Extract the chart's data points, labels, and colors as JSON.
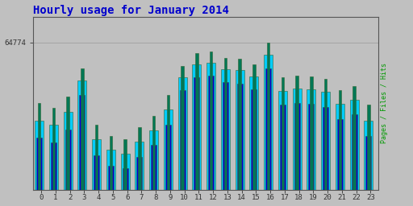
{
  "title": "Hourly usage for January 2014",
  "title_color": "#0000cc",
  "title_fontsize": 10,
  "ylabel": "Pages / Files / Hits",
  "ylabel_color": "#009900",
  "ytick_label": "64774",
  "background_color": "#c0c0c0",
  "plot_bg_color": "#c0c0c0",
  "bar_border_color": "#336633",
  "hours": [
    0,
    1,
    2,
    3,
    4,
    5,
    6,
    7,
    8,
    9,
    10,
    11,
    12,
    13,
    14,
    15,
    16,
    17,
    18,
    19,
    20,
    21,
    22,
    23
  ],
  "pages": [
    0.92,
    0.915,
    0.928,
    0.96,
    0.895,
    0.882,
    0.878,
    0.892,
    0.905,
    0.93,
    0.963,
    0.978,
    0.98,
    0.972,
    0.971,
    0.965,
    0.99,
    0.95,
    0.952,
    0.951,
    0.948,
    0.935,
    0.94,
    0.918
  ],
  "files": [
    0.88,
    0.875,
    0.89,
    0.93,
    0.86,
    0.848,
    0.845,
    0.858,
    0.872,
    0.895,
    0.935,
    0.95,
    0.952,
    0.944,
    0.943,
    0.936,
    0.96,
    0.918,
    0.92,
    0.919,
    0.916,
    0.902,
    0.907,
    0.882
  ],
  "hits": [
    0.9,
    0.895,
    0.91,
    0.946,
    0.878,
    0.866,
    0.862,
    0.876,
    0.889,
    0.913,
    0.95,
    0.965,
    0.967,
    0.959,
    0.958,
    0.951,
    0.976,
    0.934,
    0.937,
    0.936,
    0.933,
    0.919,
    0.924,
    0.9
  ],
  "pages_color": "#007755",
  "files_color": "#0000dd",
  "hits_color": "#00ccff",
  "bar_width": 0.28,
  "ylim_min": 0.82,
  "ylim_max": 1.02,
  "xlim_min": -0.55,
  "xlim_max": 23.55
}
